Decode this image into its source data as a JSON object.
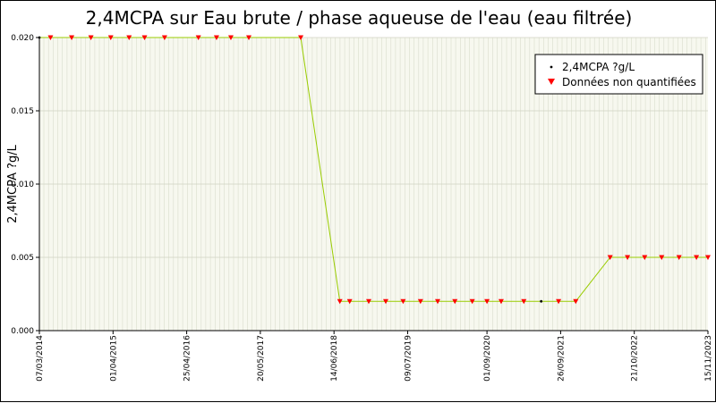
{
  "chart_data": {
    "type": "line",
    "title": "2,4MCPA sur Eau brute / phase aqueuse de l'eau (eau filtrée)",
    "xlabel": "",
    "ylabel": "2,4MCPA ?g/L",
    "xlim": [
      "2014-03-07",
      "2023-11-15"
    ],
    "ylim": [
      0,
      0.02
    ],
    "y_ticks": [
      "0.000",
      "0.005",
      "0.010",
      "0.015",
      "0.020"
    ],
    "x_ticks": [
      "07/03/2014",
      "01/04/2015",
      "25/04/2016",
      "20/05/2017",
      "14/06/2018",
      "09/07/2019",
      "01/09/2020",
      "26/09/2021",
      "21/10/2022",
      "15/11/2023"
    ],
    "grid": true,
    "legend_position": "top-right",
    "series": [
      {
        "name": "2,4MCPA ?g/L",
        "color": "#99cc00",
        "marker_color": "#000000",
        "x": [
          "2014-03-07",
          "2014-05-05",
          "2014-08-25",
          "2014-12-05",
          "2015-03-20",
          "2015-06-25",
          "2015-09-15",
          "2015-12-30",
          "2016-06-26",
          "2016-09-30",
          "2016-12-15",
          "2017-03-20",
          "2017-12-20",
          "2018-07-15",
          "2018-09-05",
          "2018-12-15",
          "2019-03-15",
          "2019-06-15",
          "2019-09-15",
          "2019-12-15",
          "2020-03-15",
          "2020-06-15",
          "2020-09-01",
          "2020-11-15",
          "2021-03-15",
          "2021-06-15",
          "2021-09-15",
          "2021-12-15",
          "2022-06-15",
          "2022-09-15",
          "2022-12-15",
          "2023-03-15",
          "2023-06-15",
          "2023-09-15",
          "2023-11-15"
        ],
        "values": [
          0.02,
          0.02,
          0.02,
          0.02,
          0.02,
          0.02,
          0.02,
          0.02,
          0.02,
          0.02,
          0.02,
          0.02,
          0.02,
          0.002,
          0.002,
          0.002,
          0.002,
          0.002,
          0.002,
          0.002,
          0.002,
          0.002,
          0.002,
          0.002,
          0.002,
          0.002,
          0.002,
          0.002,
          0.005,
          0.005,
          0.005,
          0.005,
          0.005,
          0.005,
          0.005
        ],
        "quantified": [
          true,
          false,
          false,
          false,
          false,
          false,
          false,
          false,
          false,
          false,
          false,
          false,
          false,
          false,
          false,
          false,
          false,
          false,
          false,
          false,
          false,
          false,
          false,
          false,
          false,
          true,
          false,
          false,
          false,
          false,
          false,
          false,
          false,
          false,
          false
        ]
      }
    ],
    "legend": [
      {
        "label": "2,4MCPA ?g/L",
        "marker": "dot",
        "color": "#000000"
      },
      {
        "label": "Données non quantifiées",
        "marker": "triangle-down",
        "color": "#ff0000"
      }
    ]
  }
}
